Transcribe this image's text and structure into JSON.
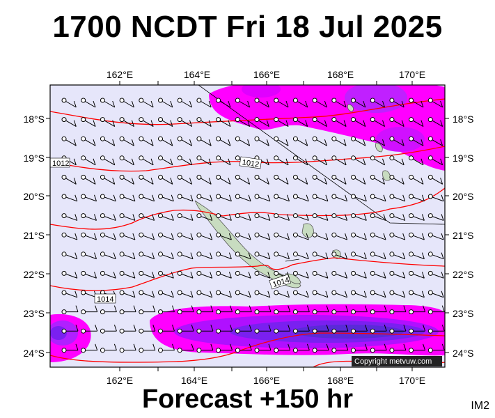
{
  "header": {
    "title": "1700 NCDT Fri 18 Jul 2025"
  },
  "footer": {
    "forecast": "Forecast +150 hr",
    "code": "IM2"
  },
  "map": {
    "lon_ticks": [
      "162°E",
      "164°E",
      "166°E",
      "168°E",
      "170°E"
    ],
    "lat_ticks": [
      "18°S",
      "19°S",
      "20°S",
      "21°S",
      "22°S",
      "23°S",
      "24°S"
    ],
    "isobar_labels": [
      "1012",
      "1012",
      "1014",
      "1014"
    ],
    "copyright": "Copyright metvuw.com",
    "colors": {
      "background": "#e6e6fa",
      "precip_light": "#ff00ff",
      "precip_medium": "#b000ff",
      "precip_heavy": "#6020e0",
      "isobar": "#ff0000",
      "land": "#c8dcc0"
    }
  }
}
